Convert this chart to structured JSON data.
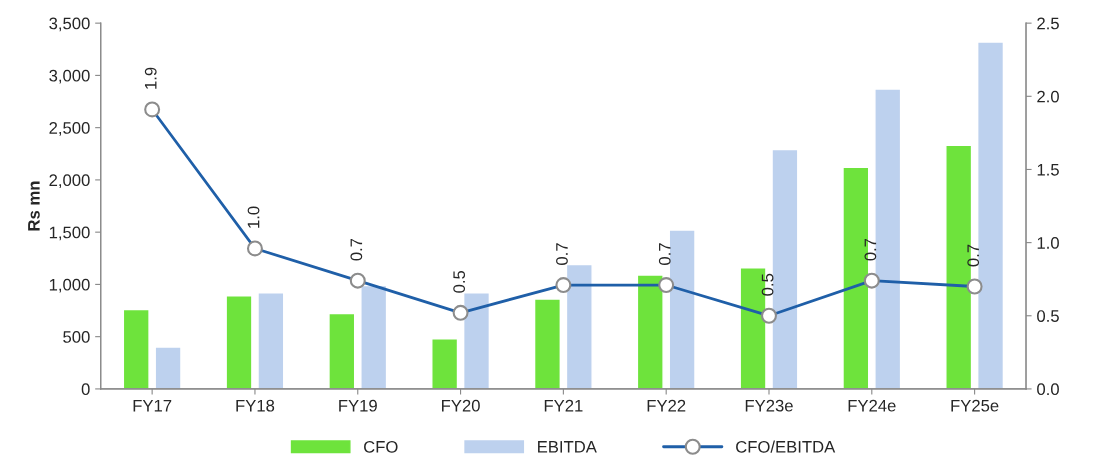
{
  "chart_data": {
    "type": "bar",
    "ylabel": "Rs mn",
    "categories": [
      "FY17",
      "FY18",
      "FY19",
      "FY20",
      "FY21",
      "FY22",
      "FY23e",
      "FY24e",
      "FY25e"
    ],
    "series": [
      {
        "name": "CFO",
        "color": "#6ee33c",
        "values": [
          760,
          890,
          720,
          480,
          860,
          1090,
          1160,
          2120,
          2330
        ]
      },
      {
        "name": "EBITDA",
        "color": "#bdd1ee",
        "values": [
          400,
          920,
          990,
          920,
          1190,
          1520,
          2290,
          2870,
          3320
        ]
      },
      {
        "name": "CFO/EBITDA",
        "type": "line",
        "axis": "y2",
        "color": "#1f5fa8",
        "marker": "circle",
        "line_style": "solid",
        "values": [
          1.91,
          0.96,
          0.74,
          0.52,
          0.71,
          0.71,
          0.5,
          0.74,
          0.7
        ],
        "value_labels": [
          "1.9",
          "1.0",
          "0.7",
          "0.5",
          "0.7",
          "0.7",
          "0.5",
          "0.7",
          "0.7"
        ]
      }
    ],
    "ylim": [
      0,
      3500
    ],
    "yticks": [
      0,
      {
        "value": 500,
        "label": "500"
      },
      {
        "value": 1000,
        "label": "1,000"
      },
      {
        "value": 1500,
        "label": "1,500"
      },
      {
        "value": 2000,
        "label": "2,000"
      },
      {
        "value": 2500,
        "label": "2,500"
      },
      {
        "value": 3000,
        "label": "3,000"
      },
      {
        "value": 3500,
        "label": "3,500"
      }
    ],
    "y2lim": [
      0,
      2.5
    ],
    "y2ticks": [
      {
        "value": 0,
        "label": "0.0"
      },
      0.5,
      {
        "value": 1,
        "label": "1.0"
      },
      1.5,
      {
        "value": 2,
        "label": "2.0"
      },
      2.5
    ],
    "grid": false,
    "legend": "bottom"
  }
}
